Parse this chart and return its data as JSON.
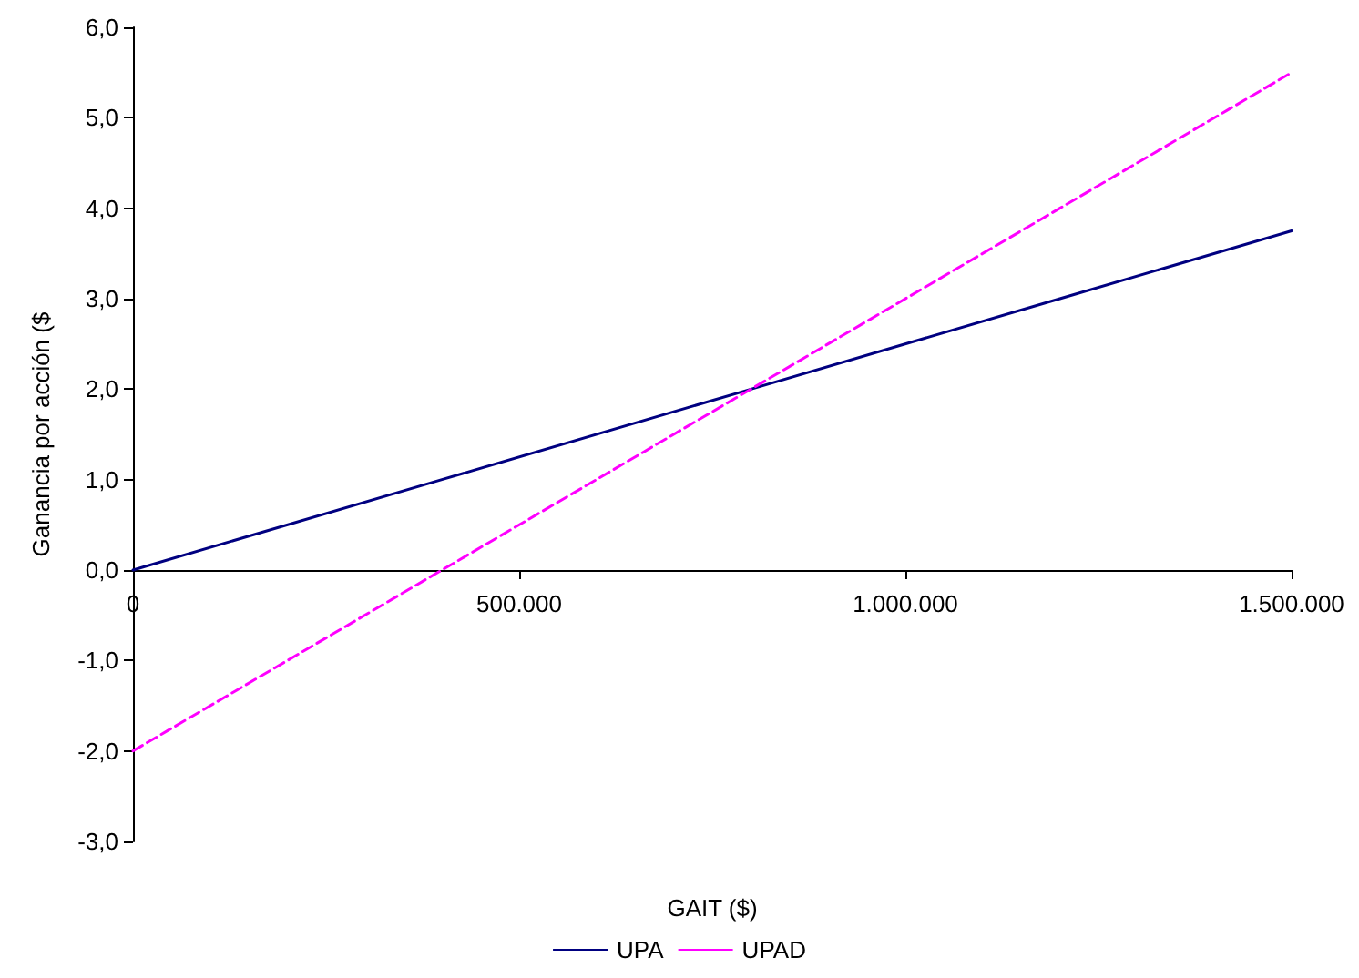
{
  "chart_data": {
    "type": "line",
    "xlabel": "GAIT ($)",
    "ylabel": "Ganancia por acción ($",
    "x": [
      0,
      400000,
      800000,
      1200000,
      1500000
    ],
    "series": [
      {
        "name": "UPA",
        "color": "#000080",
        "values": [
          0,
          1,
          2,
          3,
          3.75
        ],
        "line_style": "solid"
      },
      {
        "name": "UPAD",
        "color": "#ff00ff",
        "values": [
          -2,
          0,
          2,
          4,
          5.5
        ],
        "line_style": "dashed"
      }
    ],
    "xlim": [
      0,
      1500000
    ],
    "xticks": [
      0,
      {
        "value": 500000,
        "label": "500.000"
      },
      {
        "value": 1000000,
        "label": "1.000.000"
      },
      {
        "value": 1500000,
        "label": "1.500.000"
      }
    ],
    "ylim": [
      -3,
      6
    ],
    "yticks": [
      {
        "value": -3,
        "label": "-3,0"
      },
      {
        "value": -2,
        "label": "-2,0"
      },
      {
        "value": -1,
        "label": "-1,0"
      },
      {
        "value": 0,
        "label": "0,0"
      },
      {
        "value": 1,
        "label": "1,0"
      },
      {
        "value": 2,
        "label": "2,0"
      },
      {
        "value": 3,
        "label": "3,0"
      },
      {
        "value": 4,
        "label": "4,0"
      },
      {
        "value": 5,
        "label": "5,0"
      },
      {
        "value": 6,
        "label": "6,0"
      }
    ],
    "grid": false,
    "legend": "bottom",
    "marker": "none"
  }
}
